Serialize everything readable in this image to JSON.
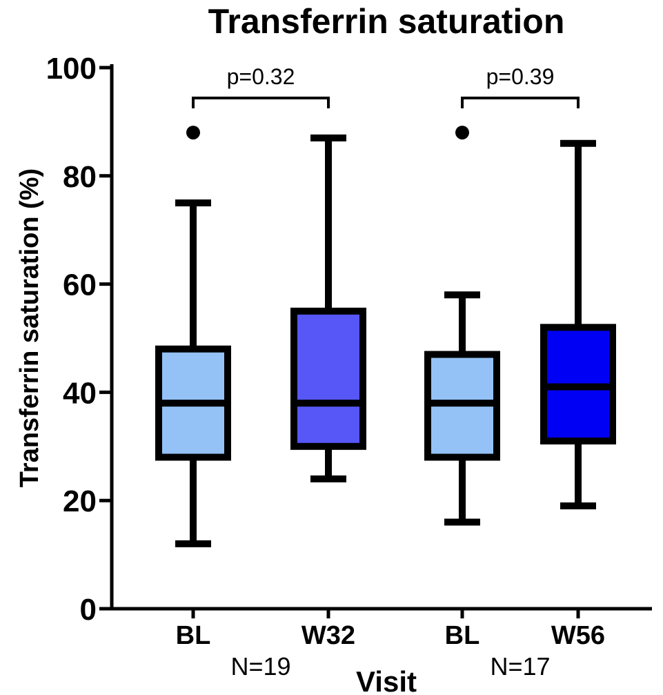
{
  "chart_data": {
    "type": "box",
    "title": "Transferrin saturation",
    "ylabel": "Transferrin saturation (%)",
    "xlabel": "Visit",
    "ylim": [
      0,
      100
    ],
    "yticks": [
      "0",
      "20",
      "40",
      "60",
      "80",
      "100"
    ],
    "categories": [
      "BL",
      "W32",
      "BL",
      "W56"
    ],
    "groups": [
      {
        "label": "N=19",
        "categories": [
          0,
          1
        ],
        "pvalue": "p=0.32"
      },
      {
        "label": "N=17",
        "categories": [
          2,
          3
        ],
        "pvalue": "p=0.39"
      }
    ],
    "boxes": [
      {
        "category": "BL",
        "whisker_low": 12,
        "q1": 28,
        "median": 38,
        "q3": 48,
        "whisker_high": 75,
        "outliers": [
          88
        ],
        "color": "#94c2f7"
      },
      {
        "category": "W32",
        "whisker_low": 24,
        "q1": 30,
        "median": 38,
        "q3": 55,
        "whisker_high": 87,
        "outliers": [],
        "color": "#5657f6"
      },
      {
        "category": "BL",
        "whisker_low": 16,
        "q1": 28,
        "median": 38,
        "q3": 47,
        "whisker_high": 58,
        "outliers": [
          88
        ],
        "color": "#94c2f7"
      },
      {
        "category": "W56",
        "whisker_low": 19,
        "q1": 31,
        "median": 41,
        "q3": 52,
        "whisker_high": 86,
        "outliers": [],
        "color": "#0000f4"
      }
    ]
  }
}
